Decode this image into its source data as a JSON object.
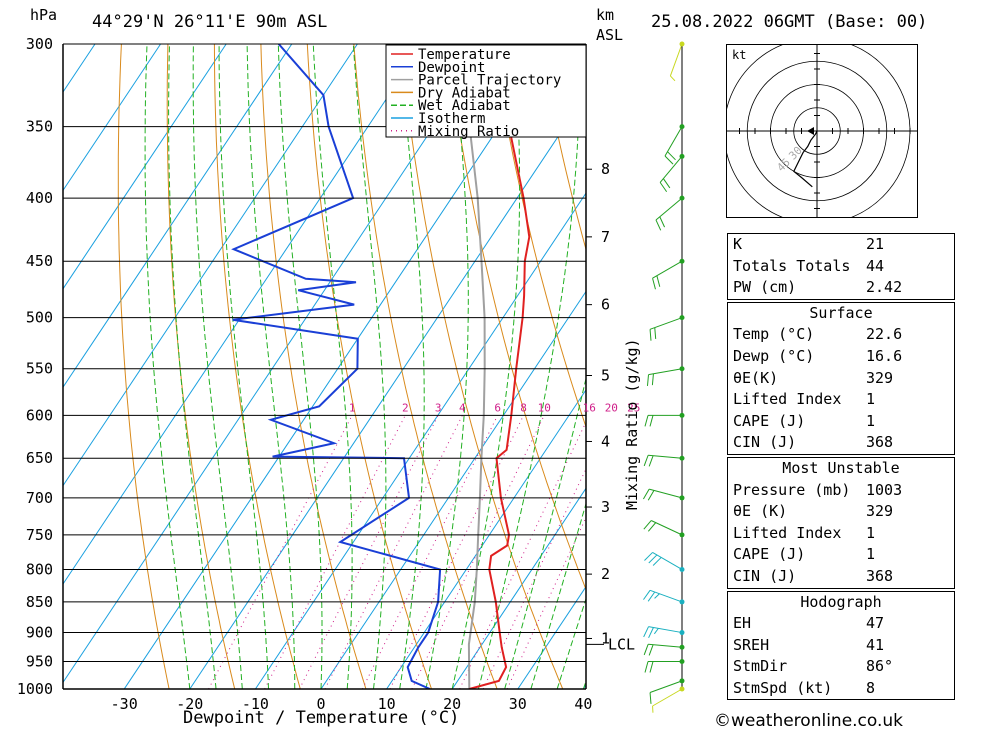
{
  "header": {
    "pressure_unit": "hPa",
    "location": "44°29'N 26°11'E 90m ASL",
    "height_unit_line1": "km",
    "height_unit_line2": "ASL",
    "datetime": "25.08.2022 06GMT (Base: 00)"
  },
  "colors": {
    "temperature": "#e02020",
    "dewpoint": "#1a3fd6",
    "parcel": "#a0a0a0",
    "dry_adiabat": "#d98a1c",
    "wet_adiabat": "#22b022",
    "isotherm": "#1aa0e0",
    "mixing_ratio": "#d0208a",
    "wind_barb": "#c8d820"
  },
  "chart_data": {
    "type": "line",
    "title": "",
    "xlabel": "Dewpoint / Temperature (°C)",
    "ylabel": "",
    "xlim": [
      -40,
      40
    ],
    "ylim": [
      1000,
      300
    ],
    "x_ticks": [
      "-30",
      "-20",
      "-10",
      "0",
      "10",
      "20",
      "30",
      "40"
    ],
    "pressure_ticks": [
      "300",
      "350",
      "400",
      "450",
      "500",
      "550",
      "600",
      "650",
      "700",
      "750",
      "800",
      "850",
      "900",
      "950",
      "1000"
    ],
    "pressure_values": [
      300,
      350,
      400,
      450,
      500,
      550,
      600,
      650,
      700,
      750,
      800,
      850,
      900,
      950,
      1000
    ],
    "height_ticks": [
      {
        "label": "8",
        "p": 379
      },
      {
        "label": "7",
        "p": 430
      },
      {
        "label": "6",
        "p": 488
      },
      {
        "label": "5",
        "p": 557
      },
      {
        "label": "4",
        "p": 630
      },
      {
        "label": "3",
        "p": 712
      },
      {
        "label": "2",
        "p": 807
      },
      {
        "label": "1",
        "p": 910
      }
    ],
    "lcl_label": "LCL",
    "lcl_p": 920,
    "mixing_ratio_axis_label": "Mixing Ratio (g/kg)",
    "mixing_ratio_labels": [
      "1",
      "2",
      "3",
      "4",
      "6",
      "8",
      "10",
      "16",
      "20",
      "25"
    ],
    "mixing_ratio_values": [
      1,
      2,
      3,
      4,
      6,
      8,
      10,
      16,
      20,
      25
    ],
    "legend": [
      "Temperature",
      "Dewpoint",
      "Parcel Trajectory",
      "Dry Adiabat",
      "Wet Adiabat",
      "Isotherm",
      "Mixing Ratio"
    ],
    "legend_position": "top-right",
    "series": [
      {
        "name": "Temperature",
        "points": [
          [
            1000,
            22.6
          ],
          [
            985,
            26.3
          ],
          [
            960,
            26.0
          ],
          [
            925,
            23.3
          ],
          [
            900,
            21.5
          ],
          [
            850,
            17.8
          ],
          [
            800,
            13.5
          ],
          [
            780,
            12.4
          ],
          [
            765,
            13.8
          ],
          [
            750,
            13.0
          ],
          [
            700,
            8.0
          ],
          [
            650,
            3.3
          ],
          [
            640,
            4.0
          ],
          [
            600,
            1.2
          ],
          [
            550,
            -2.8
          ],
          [
            500,
            -7.0
          ],
          [
            480,
            -9.0
          ],
          [
            450,
            -12.4
          ],
          [
            430,
            -14.2
          ],
          [
            400,
            -19.0
          ],
          [
            350,
            -28.5
          ],
          [
            300,
            -39.6
          ]
        ]
      },
      {
        "name": "Dewpoint",
        "points": [
          [
            1000,
            16.6
          ],
          [
            985,
            13.0
          ],
          [
            960,
            11.0
          ],
          [
            925,
            10.6
          ],
          [
            900,
            10.6
          ],
          [
            850,
            9.0
          ],
          [
            800,
            6.0
          ],
          [
            760,
            -12.0
          ],
          [
            700,
            -6.0
          ],
          [
            650,
            -10.8
          ],
          [
            648,
            -31.0
          ],
          [
            632,
            -23.0
          ],
          [
            605,
            -35.0
          ],
          [
            590,
            -29.0
          ],
          [
            550,
            -27.0
          ],
          [
            520,
            -30.0
          ],
          [
            502,
            -51.0
          ],
          [
            488,
            -34.0
          ],
          [
            475,
            -44.0
          ],
          [
            468,
            -36.0
          ],
          [
            465,
            -44.0
          ],
          [
            440,
            -58.0
          ],
          [
            400,
            -45.0
          ],
          [
            350,
            -56.0
          ],
          [
            330,
            -60.0
          ],
          [
            300,
            -72.0
          ]
        ]
      },
      {
        "name": "Parcel Trajectory",
        "points": [
          [
            1000,
            22.6
          ],
          [
            920,
            18.0
          ],
          [
            850,
            14.6
          ],
          [
            800,
            11.6
          ],
          [
            750,
            8.3
          ],
          [
            700,
            4.8
          ],
          [
            650,
            1.0
          ],
          [
            600,
            -3.0
          ],
          [
            550,
            -7.6
          ],
          [
            500,
            -12.8
          ],
          [
            450,
            -19.0
          ],
          [
            400,
            -26.0
          ],
          [
            350,
            -34.5
          ],
          [
            300,
            -44.5
          ]
        ]
      }
    ]
  },
  "winds": [
    {
      "p": 1000,
      "dir": 60,
      "spd": 5
    },
    {
      "p": 985,
      "dir": 70,
      "spd": 7
    },
    {
      "p": 950,
      "dir": 90,
      "spd": 8
    },
    {
      "p": 925,
      "dir": 95,
      "spd": 12
    },
    {
      "p": 900,
      "dir": 100,
      "spd": 15
    },
    {
      "p": 850,
      "dir": 110,
      "spd": 15
    },
    {
      "p": 800,
      "dir": 120,
      "spd": 14
    },
    {
      "p": 750,
      "dir": 115,
      "spd": 12
    },
    {
      "p": 700,
      "dir": 105,
      "spd": 12
    },
    {
      "p": 650,
      "dir": 95,
      "spd": 10
    },
    {
      "p": 600,
      "dir": 90,
      "spd": 10
    },
    {
      "p": 550,
      "dir": 80,
      "spd": 10
    },
    {
      "p": 500,
      "dir": 70,
      "spd": 10
    },
    {
      "p": 450,
      "dir": 60,
      "spd": 12
    },
    {
      "p": 400,
      "dir": 50,
      "spd": 10
    },
    {
      "p": 370,
      "dir": 40,
      "spd": 10
    },
    {
      "p": 350,
      "dir": 30,
      "spd": 10
    },
    {
      "p": 300,
      "dir": 20,
      "spd": 5
    }
  ],
  "hodograph": {
    "unit": "kt",
    "ring_labels": [
      "30",
      "45"
    ],
    "trace": [
      [
        0,
        0
      ],
      [
        -1,
        2
      ],
      [
        -4,
        6
      ],
      [
        -6,
        10
      ],
      [
        -9,
        14
      ],
      [
        -12,
        20
      ],
      [
        -15,
        26
      ],
      [
        -10,
        30
      ],
      [
        -3,
        36
      ]
    ]
  },
  "indices": {
    "general": [
      {
        "label": "K",
        "value": "21"
      },
      {
        "label": "Totals Totals",
        "value": "44"
      },
      {
        "label": "PW (cm)",
        "value": "2.42"
      }
    ],
    "surface": {
      "title": "Surface",
      "rows": [
        {
          "label": "Temp (°C)",
          "value": "22.6"
        },
        {
          "label": "Dewp (°C)",
          "value": "16.6"
        },
        {
          "label": "θE(K)",
          "value": "329"
        },
        {
          "label": "Lifted Index",
          "value": "1"
        },
        {
          "label": "CAPE (J)",
          "value": "1"
        },
        {
          "label": "CIN (J)",
          "value": "368"
        }
      ]
    },
    "most_unstable": {
      "title": "Most Unstable",
      "rows": [
        {
          "label": "Pressure (mb)",
          "value": "1003"
        },
        {
          "label": "θE (K)",
          "value": "329"
        },
        {
          "label": "Lifted Index",
          "value": "1"
        },
        {
          "label": "CAPE (J)",
          "value": "1"
        },
        {
          "label": "CIN (J)",
          "value": "368"
        }
      ]
    },
    "hodograph": {
      "title": "Hodograph",
      "rows": [
        {
          "label": "EH",
          "value": "47"
        },
        {
          "label": "SREH",
          "value": "41"
        },
        {
          "label": "StmDir",
          "value": "86°"
        },
        {
          "label": "StmSpd (kt)",
          "value": "8"
        }
      ]
    }
  },
  "footer": {
    "copyright": "©weatheronline.co.uk"
  }
}
